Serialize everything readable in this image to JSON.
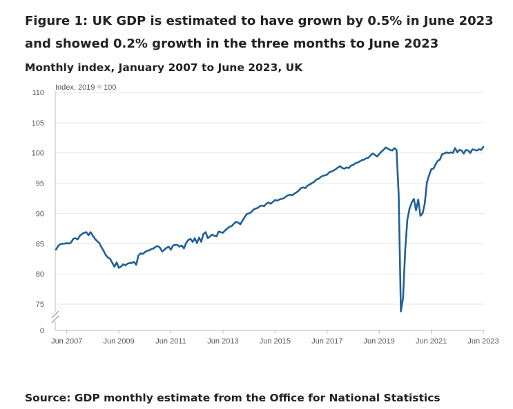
{
  "figure": {
    "title_line1": "Figure 1: UK GDP is estimated to have grown by 0.5% in June 2023",
    "title_line2": "and showed 0.2% growth in the three months to June 2023",
    "subtitle": "Monthly index, January 2007 to June 2023, UK",
    "source": "Source: GDP monthly estimate from the Office for National Statistics"
  },
  "colors": {
    "line": "#206095",
    "grid": "#e6e6e6",
    "axis": "#bbbbbb"
  },
  "chart_data": {
    "type": "line",
    "title": "Figure 1: UK GDP is estimated to have grown by 0.5% in June 2023 and showed 0.2% growth in the three months to June 2023",
    "subtitle": "Monthly index, January 2007 to June 2023, UK",
    "unit_label": "Index, 2019 = 100",
    "xlabel": "",
    "ylabel": "Index, 2019 = 100",
    "ylim": [
      73,
      110
    ],
    "axis_break": true,
    "y_ticks": [
      110,
      105,
      100,
      95,
      90,
      85,
      80,
      75
    ],
    "y_zero_label": "0",
    "x_ticks": [
      "Jun 2007",
      "Jun 2009",
      "Jun 2011",
      "Jun 2013",
      "Jun 2015",
      "Jun 2017",
      "Jun 2019",
      "Jun 2021",
      "Jun 2023"
    ],
    "grid": true,
    "legend": "none",
    "series": [
      {
        "name": "GDP monthly index",
        "start": "Jan 2007",
        "frequency": "monthly",
        "values": [
          84.0,
          84.6,
          84.9,
          85.0,
          85.0,
          85.1,
          85.0,
          85.2,
          85.8,
          85.9,
          85.7,
          86.3,
          86.6,
          86.8,
          86.9,
          86.4,
          86.9,
          86.3,
          85.8,
          85.4,
          85.1,
          84.4,
          83.8,
          83.1,
          82.7,
          82.5,
          81.8,
          81.2,
          81.9,
          81.0,
          81.2,
          81.6,
          81.4,
          81.7,
          81.8,
          81.8,
          82.0,
          81.5,
          83.0,
          83.4,
          83.3,
          83.6,
          83.8,
          83.9,
          84.1,
          84.2,
          84.5,
          84.6,
          84.3,
          83.7,
          84.0,
          84.3,
          84.5,
          84.0,
          84.7,
          84.8,
          84.8,
          84.5,
          84.7,
          84.2,
          85.1,
          85.6,
          85.8,
          85.3,
          85.9,
          85.1,
          86.0,
          85.3,
          86.6,
          86.9,
          85.9,
          86.2,
          86.5,
          86.3,
          86.2,
          87.0,
          86.9,
          86.8,
          87.2,
          87.5,
          87.8,
          87.9,
          88.3,
          88.6,
          88.5,
          88.2,
          88.8,
          89.4,
          89.9,
          90.0,
          90.2,
          90.6,
          90.8,
          90.9,
          91.2,
          91.3,
          91.2,
          91.6,
          91.8,
          91.6,
          91.9,
          92.2,
          92.1,
          92.3,
          92.4,
          92.5,
          92.8,
          93.0,
          93.1,
          93.0,
          93.3,
          93.5,
          93.8,
          94.2,
          94.3,
          94.2,
          94.6,
          94.8,
          95.0,
          95.2,
          95.6,
          95.7,
          96.0,
          96.2,
          96.3,
          96.4,
          96.8,
          96.9,
          97.1,
          97.3,
          97.6,
          97.8,
          97.5,
          97.4,
          97.6,
          97.5,
          97.9,
          98.0,
          98.3,
          98.4,
          98.6,
          98.8,
          98.9,
          99.1,
          99.2,
          99.6,
          99.9,
          99.7,
          99.4,
          99.8,
          100.2,
          100.5,
          100.9,
          100.7,
          100.5,
          100.4,
          100.8,
          100.5,
          93.0,
          73.8,
          76.0,
          84.0,
          89.0,
          90.8,
          91.8,
          92.4,
          90.5,
          92.3,
          89.6,
          90.0,
          91.6,
          95.1,
          96.3,
          97.3,
          97.4,
          98.1,
          98.7,
          98.9,
          99.8,
          99.9,
          100.1,
          100.0,
          100.1,
          100.0,
          100.8,
          100.1,
          100.5,
          100.4,
          99.9,
          100.5,
          100.4,
          100.0,
          100.6,
          100.5,
          100.4,
          100.6,
          100.5,
          101.0
        ]
      }
    ]
  }
}
